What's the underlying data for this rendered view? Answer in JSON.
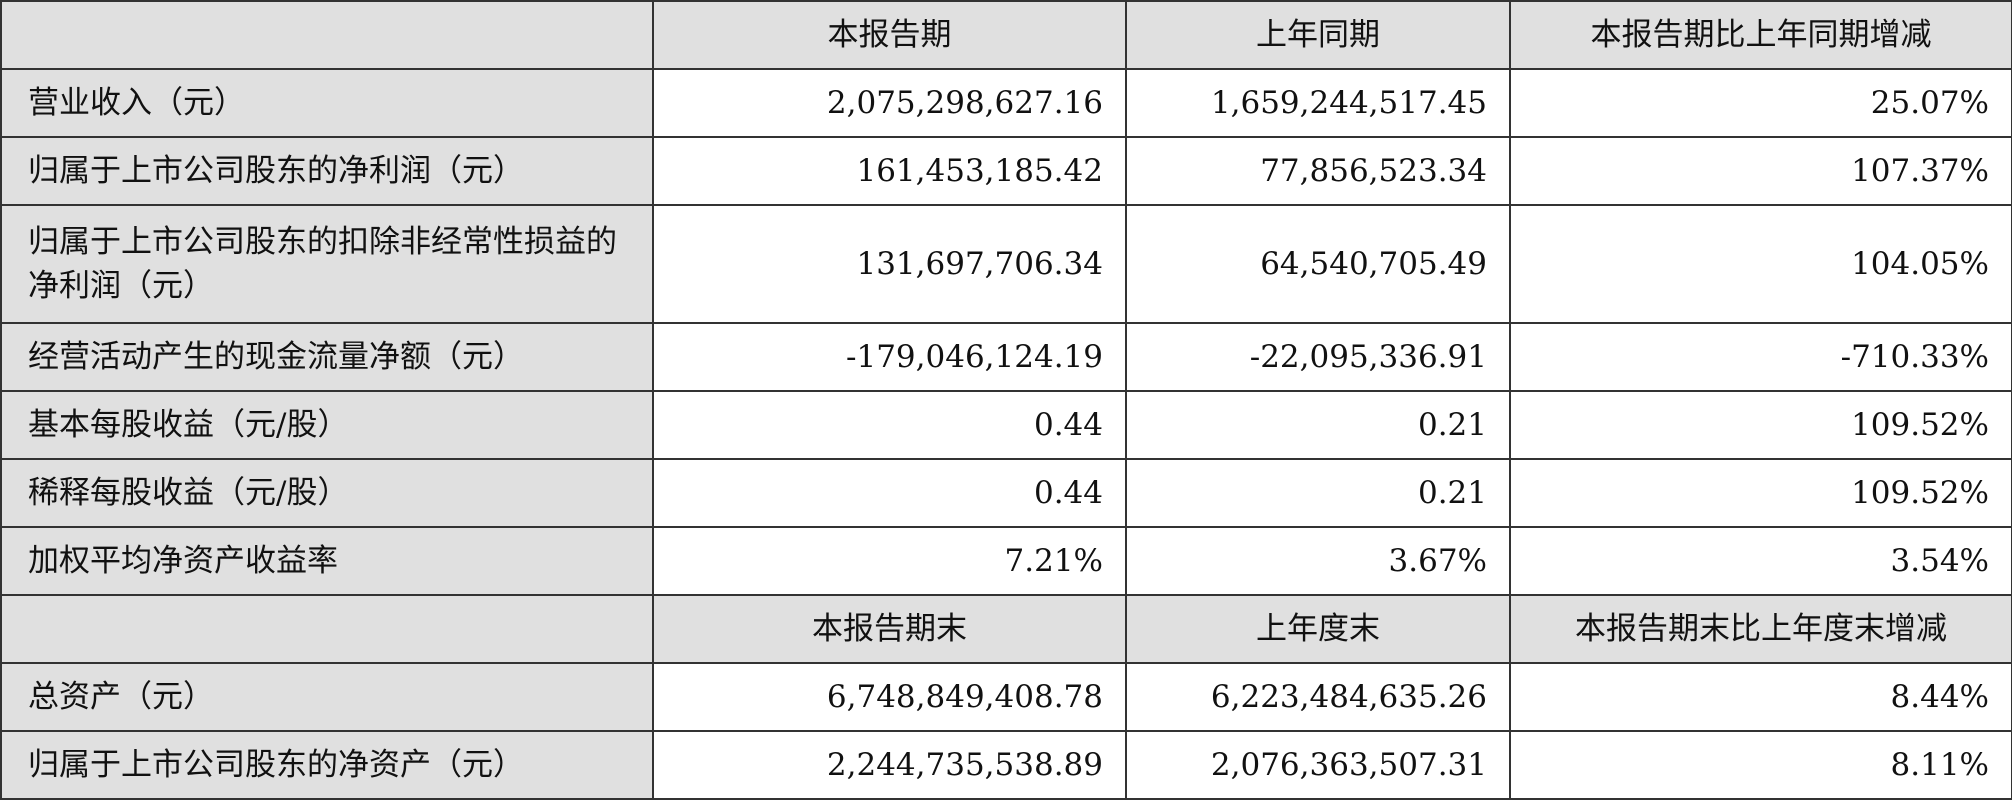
{
  "header1": [
    "",
    "本报告期",
    "上年同期",
    "本报告期比上年同期增减"
  ],
  "rows1": [
    {
      "label": "营业收入（元）",
      "values": [
        "2,075,298,627.16",
        "1,659,244,517.45",
        "25.07%"
      ]
    },
    {
      "label": "归属于上市公司股东的净利润（元）",
      "values": [
        "161,453,185.42",
        "77,856,523.34",
        "107.37%"
      ]
    },
    {
      "label": "归属于上市公司股东的扣除非经常性损益的净利润（元）",
      "values": [
        "131,697,706.34",
        "64,540,705.49",
        "104.05%"
      ]
    },
    {
      "label": "经营活动产生的现金流量净额（元）",
      "values": [
        "-179,046,124.19",
        "-22,095,336.91",
        "-710.33%"
      ]
    },
    {
      "label": "基本每股收益（元/股）",
      "values": [
        "0.44",
        "0.21",
        "109.52%"
      ]
    },
    {
      "label": "稀释每股收益（元/股）",
      "values": [
        "0.44",
        "0.21",
        "109.52%"
      ]
    },
    {
      "label": "加权平均净资产收益率",
      "values": [
        "7.21%",
        "3.67%",
        "3.54%"
      ]
    }
  ],
  "header2": [
    "",
    "本报告期末",
    "上年度末",
    "本报告期末比上年度末增减"
  ],
  "rows2": [
    {
      "label": "总资产（元）",
      "values": [
        "6,748,849,408.78",
        "6,223,484,635.26",
        "8.44%"
      ]
    },
    {
      "label": "归属于上市公司股东的净资产（元）",
      "values": [
        "2,244,735,538.89",
        "2,076,363,507.31",
        "8.11%"
      ]
    }
  ]
}
